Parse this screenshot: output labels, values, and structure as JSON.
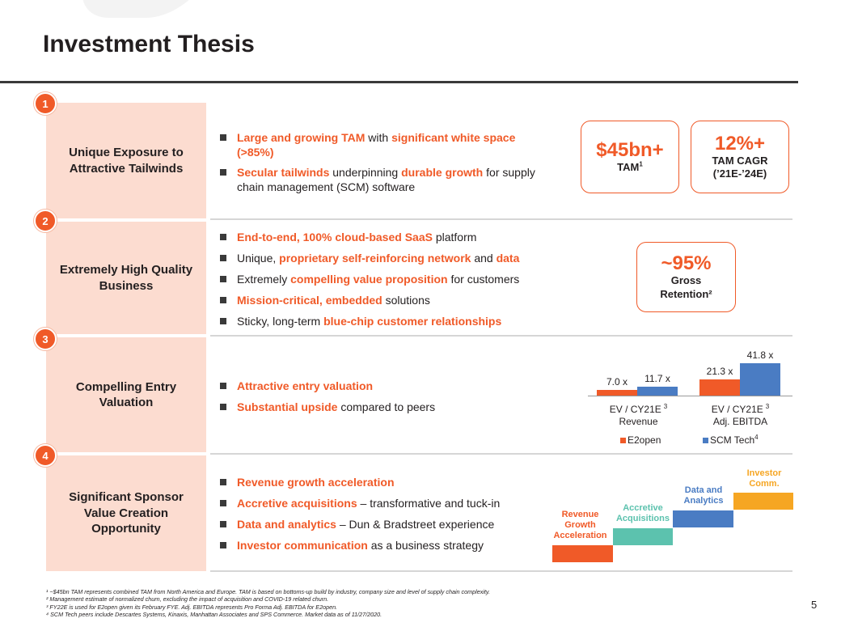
{
  "header": {
    "title": "Investment Thesis"
  },
  "sections": [
    {
      "number": "1",
      "title": "Unique Exposure to Attractive Tailwinds",
      "bullets": [
        {
          "parts": [
            {
              "text": "Large and growing TAM",
              "hl": true
            },
            {
              "text": " with ",
              "hl": false
            },
            {
              "text": "significant white space (>85%)",
              "hl": true
            }
          ]
        },
        {
          "parts": [
            {
              "text": "Secular tailwinds",
              "hl": true
            },
            {
              "text": " underpinning ",
              "hl": false
            },
            {
              "text": "durable growth",
              "hl": true
            },
            {
              "text": " for supply chain management (SCM) software",
              "hl": false
            }
          ]
        }
      ]
    },
    {
      "number": "2",
      "title": "Extremely High Quality Business",
      "bullets": [
        {
          "parts": [
            {
              "text": "End-to-end, 100% cloud-based SaaS",
              "hl": true
            },
            {
              "text": " platform",
              "hl": false
            }
          ]
        },
        {
          "parts": [
            {
              "text": "Unique, ",
              "hl": false
            },
            {
              "text": "proprietary self-reinforcing network",
              "hl": true
            },
            {
              "text": " and ",
              "hl": false
            },
            {
              "text": "data",
              "hl": true
            }
          ]
        },
        {
          "parts": [
            {
              "text": "Extremely ",
              "hl": false
            },
            {
              "text": "compelling value proposition",
              "hl": true
            },
            {
              "text": " for customers",
              "hl": false
            }
          ]
        },
        {
          "parts": [
            {
              "text": "Mission-critical, embedded",
              "hl": true
            },
            {
              "text": " solutions",
              "hl": false
            }
          ]
        },
        {
          "parts": [
            {
              "text": "Sticky, long-term ",
              "hl": false
            },
            {
              "text": "blue-chip customer relationships",
              "hl": true
            }
          ]
        }
      ]
    },
    {
      "number": "3",
      "title": "Compelling Entry Valuation",
      "bullets": [
        {
          "parts": [
            {
              "text": "Attractive entry valuation",
              "hl": true
            }
          ]
        },
        {
          "parts": [
            {
              "text": "Substantial upside",
              "hl": true
            },
            {
              "text": " compared to peers",
              "hl": false
            }
          ]
        }
      ]
    },
    {
      "number": "4",
      "title": "Significant Sponsor Value Creation Opportunity",
      "bullets": [
        {
          "parts": [
            {
              "text": "Revenue growth acceleration",
              "hl": true
            }
          ]
        },
        {
          "parts": [
            {
              "text": "Accretive acquisitions",
              "hl": true
            },
            {
              "text": " – transformative and tuck-in",
              "hl": false
            }
          ]
        },
        {
          "parts": [
            {
              "text": "Data and analytics",
              "hl": true
            },
            {
              "text": " – Dun & Bradstreet experience",
              "hl": false
            }
          ]
        },
        {
          "parts": [
            {
              "text": "Investor communication",
              "hl": true
            },
            {
              "text": " as a business strategy",
              "hl": false
            }
          ]
        }
      ]
    }
  ],
  "stats": {
    "tam_value": "$45bn+",
    "tam_label": "TAM",
    "tam_sup": "1",
    "cagr_value": "12%+",
    "cagr_label": "TAM CAGR",
    "cagr_period": "(’21E-’24E)",
    "retention_value": "~95%",
    "retention_label_1": "Gross",
    "retention_label_2": "Retention²"
  },
  "chart_data": {
    "type": "bar",
    "categories": [
      {
        "line1": "EV / CY21E",
        "line2": "Revenue",
        "sup": "3"
      },
      {
        "line1": "EV / CY21E",
        "line2": "Adj. EBITDA",
        "sup": "3"
      }
    ],
    "series": [
      {
        "name": "E2open",
        "sup": "",
        "color": "#f05a28",
        "values": [
          7.0,
          21.3
        ],
        "labels": [
          "7.0 x",
          "21.3 x"
        ]
      },
      {
        "name": "SCM Tech",
        "sup": "4",
        "color": "#4a7cc3",
        "values": [
          11.7,
          41.8
        ],
        "labels": [
          "11.7 x",
          "41.8 x"
        ]
      }
    ],
    "ylim": [
      0,
      41.8
    ],
    "legend": "bottom"
  },
  "steps": [
    {
      "label": "Revenue Growth Acceleration",
      "color": "#f05a28",
      "text_color": "#f05a28"
    },
    {
      "label": "Accretive Acquisitions",
      "color": "#5cc2ae",
      "text_color": "#5cc2ae"
    },
    {
      "label": "Data and Analytics",
      "color": "#4a7cc3",
      "text_color": "#4a7cc3"
    },
    {
      "label": "Investor Comm.",
      "color": "#f6a623",
      "text_color": "#f6a623"
    }
  ],
  "footnotes": [
    "¹ ~$45bn TAM represents combined TAM from North America and Europe. TAM is based on bottoms-up build by industry, company size and level of supply chain complexity.",
    "² Management estimate of normalized churn, excluding the impact of acquisition and COVID-19 related churn.",
    "³ FY22E is used for E2open given its February FYE. Adj. EBITDA represents Pro Forma Adj. EBITDA for E2open.",
    "⁴ SCM Tech peers include Descartes Systems, Kinaxis, Manhattan Associates and SPS Commerce. Market data as of 11/27/2020."
  ],
  "page_number": "5"
}
